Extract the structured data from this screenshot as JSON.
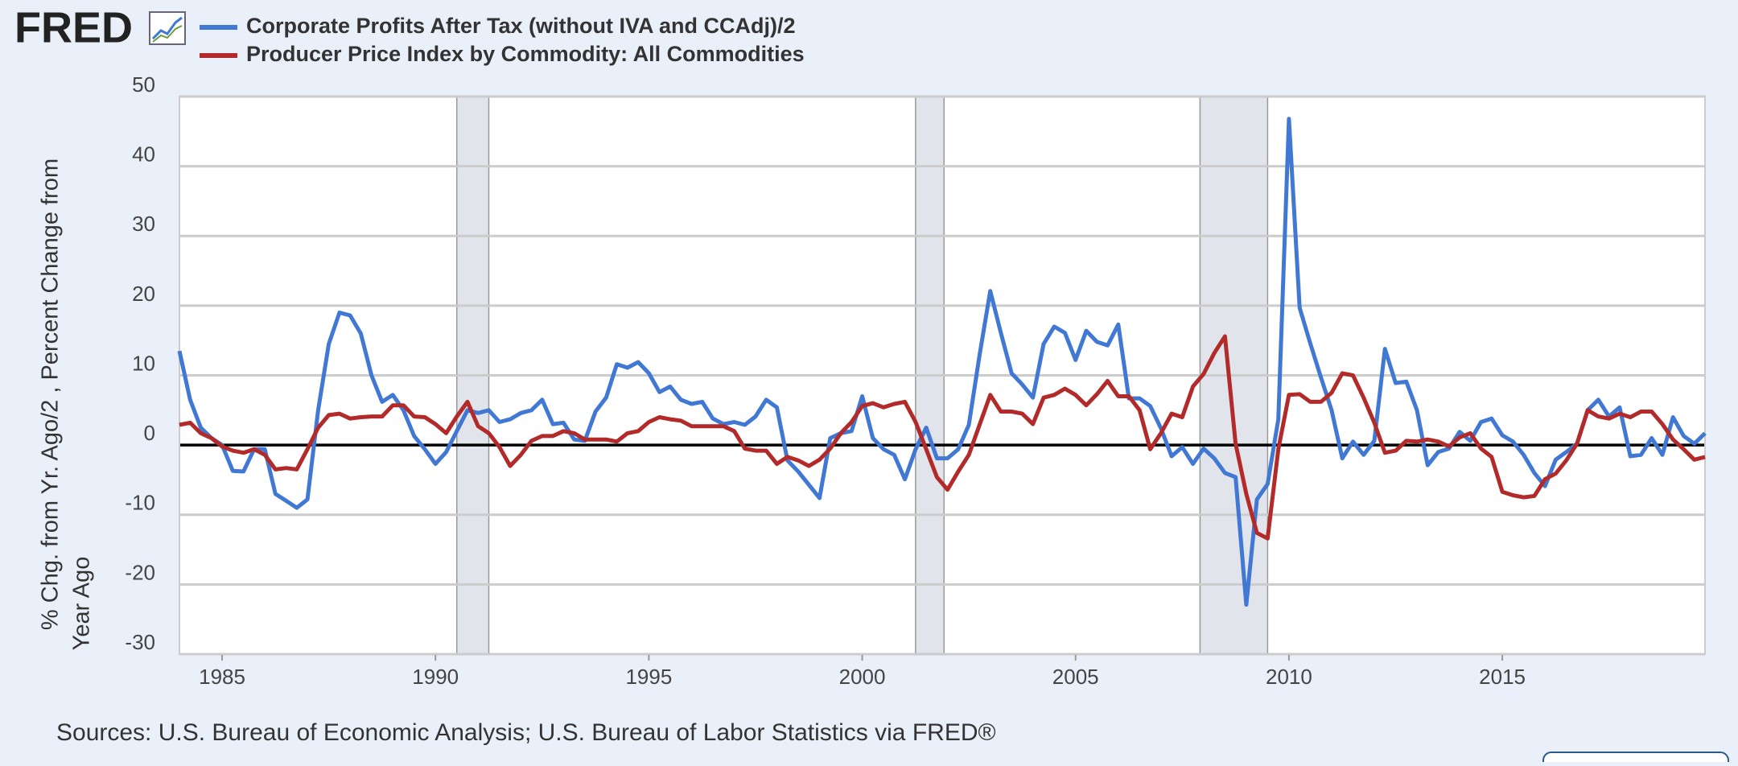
{
  "chart_data": {
    "type": "line",
    "brand": "FRED",
    "y_label": [
      "% Chg. from Yr. Ago/2 , Percent Change from",
      "Year Ago"
    ],
    "source": "Sources: U.S. Bureau of Economic Analysis; U.S. Bureau of Labor Statistics via FRED®",
    "x": [
      1984,
      1984.25,
      1984.5,
      1984.75,
      1985,
      1985.25,
      1985.5,
      1985.75,
      1986,
      1986.25,
      1986.5,
      1986.75,
      1987,
      1987.25,
      1987.5,
      1987.75,
      1988,
      1988.25,
      1988.5,
      1988.75,
      1989,
      1989.25,
      1989.5,
      1989.75,
      1990,
      1990.25,
      1990.5,
      1990.75,
      1991,
      1991.25,
      1991.5,
      1991.75,
      1992,
      1992.25,
      1992.5,
      1992.75,
      1993,
      1993.25,
      1993.5,
      1993.75,
      1994,
      1994.25,
      1994.5,
      1994.75,
      1995,
      1995.25,
      1995.5,
      1995.75,
      1996,
      1996.25,
      1996.5,
      1996.75,
      1997,
      1997.25,
      1997.5,
      1997.75,
      1998,
      1998.25,
      1998.5,
      1998.75,
      1999,
      1999.25,
      1999.5,
      1999.75,
      2000,
      2000.25,
      2000.5,
      2000.75,
      2001,
      2001.25,
      2001.5,
      2001.75,
      2002,
      2002.25,
      2002.5,
      2002.75,
      2003,
      2003.25,
      2003.5,
      2003.75,
      2004,
      2004.25,
      2004.5,
      2004.75,
      2005,
      2005.25,
      2005.5,
      2005.75,
      2006,
      2006.25,
      2006.5,
      2006.75,
      2007,
      2007.25,
      2007.5,
      2007.75,
      2008,
      2008.25,
      2008.5,
      2008.75,
      2009,
      2009.25,
      2009.5,
      2009.75,
      2010,
      2010.25,
      2010.5,
      2010.75,
      2011,
      2011.25,
      2011.5,
      2011.75,
      2012,
      2012.25,
      2012.5,
      2012.75,
      2013,
      2013.25,
      2013.5,
      2013.75,
      2014,
      2014.25,
      2014.5,
      2014.75,
      2015,
      2015.25,
      2015.5,
      2015.75,
      2016,
      2016.25,
      2016.5,
      2016.75,
      2017,
      2017.25,
      2017.5,
      2017.75,
      2018,
      2018.25,
      2018.5,
      2018.75,
      2019,
      2019.25,
      2019.5,
      2019.75
    ],
    "series": [
      {
        "name": "Corporate Profits After Tax (without IVA and CCAdj)/2",
        "color": "#4078d4",
        "values": [
          13.5,
          6.5,
          2.5,
          1,
          0,
          -3.7,
          -3.8,
          -0.6,
          -0.6,
          -7,
          -8,
          -9,
          -7.8,
          5,
          14.5,
          19,
          18.6,
          16,
          10,
          6.2,
          7.2,
          5,
          1.3,
          -0.6,
          -2.7,
          -1,
          2,
          5,
          4.6,
          5,
          3.3,
          3.7,
          4.6,
          5,
          6.5,
          3,
          3.2,
          0.8,
          0.6,
          4.8,
          6.8,
          11.6,
          11.1,
          11.9,
          10.3,
          7.6,
          8.4,
          6.5,
          5.9,
          6.2,
          3.8,
          3,
          3.3,
          2.9,
          4.1,
          6.5,
          5.4,
          -2.2,
          -3.8,
          -5.7,
          -7.6,
          1,
          1.7,
          2,
          7,
          1,
          -0.6,
          -1.4,
          -4.9,
          -0.6,
          2.5,
          -1.9,
          -1.9,
          -0.6,
          2.9,
          12.9,
          22.1,
          16.1,
          10.3,
          8.7,
          6.8,
          14.5,
          17,
          16.1,
          12.2,
          16.4,
          14.8,
          14.3,
          17.3,
          6.7,
          6.7,
          5.6,
          2.4,
          -1.6,
          -0.3,
          -2.7,
          -0.5,
          -1.9,
          -4,
          -4.6,
          -22.9,
          -7.8,
          -5.6,
          3.7,
          46.8,
          19.7,
          14.6,
          9.7,
          5,
          -1.9,
          0.5,
          -1.4,
          0.6,
          13.8,
          8.9,
          9.1,
          5,
          -2.9,
          -1,
          -0.5,
          1.9,
          0.6,
          3.3,
          3.8,
          1.4,
          0.5,
          -1.4,
          -4,
          -5.9,
          -2.1,
          -1,
          0.2,
          5,
          6.5,
          4.1,
          5.4,
          -1.6,
          -1.4,
          1,
          -1.4,
          4,
          1.3,
          0.2,
          1.7
        ]
      },
      {
        "name": "Producer Price Index by Commodity: All Commodities",
        "color": "#b22a2a",
        "values": [
          2.9,
          3.2,
          1.7,
          1,
          -0.2,
          -0.8,
          -1.1,
          -0.6,
          -1.4,
          -3.5,
          -3.3,
          -3.5,
          -0.6,
          2.5,
          4.3,
          4.5,
          3.8,
          4,
          4.1,
          4.1,
          5.7,
          5.7,
          4.1,
          4,
          3,
          1.7,
          4.1,
          6.2,
          2.7,
          1.7,
          -0.3,
          -3,
          -1.4,
          0.6,
          1.3,
          1.3,
          2,
          1.7,
          0.8,
          0.8,
          0.8,
          0.5,
          1.7,
          2,
          3.3,
          4,
          3.7,
          3.5,
          2.7,
          2.7,
          2.7,
          2.7,
          2,
          -0.5,
          -0.8,
          -0.8,
          -2.7,
          -1.7,
          -2.2,
          -3,
          -2.1,
          -0.5,
          1.7,
          3.3,
          5.6,
          6,
          5.4,
          5.9,
          6.2,
          3.3,
          -0.6,
          -4.6,
          -6.4,
          -3.8,
          -1.4,
          2.9,
          7.2,
          4.8,
          4.8,
          4.5,
          3,
          6.8,
          7.2,
          8.1,
          7.2,
          5.7,
          7.3,
          9.2,
          7,
          7,
          5,
          -0.6,
          1.7,
          4.5,
          4,
          8.4,
          10.2,
          13.2,
          15.6,
          0.2,
          -7,
          -12.6,
          -13.4,
          -0.6,
          7.2,
          7.3,
          6.2,
          6.2,
          7.5,
          10.3,
          10,
          6.8,
          3.2,
          -1.1,
          -0.8,
          0.6,
          0.5,
          0.8,
          0.5,
          -0.2,
          1.1,
          1.7,
          -0.5,
          -1.7,
          -6.7,
          -7.2,
          -7.5,
          -7.3,
          -4.9,
          -4.1,
          -2.2,
          0.2,
          5,
          4.1,
          3.8,
          4.5,
          4,
          4.8,
          4.8,
          3,
          0.8,
          -0.6,
          -2.1,
          -1.7
        ]
      }
    ],
    "recessions": [
      [
        1990.5,
        1991.25
      ],
      [
        2001.25,
        2001.917
      ],
      [
        2007.917,
        2009.5
      ]
    ],
    "xlim": [
      1984,
      2019.75
    ],
    "xticks": [
      1985,
      1990,
      1995,
      2000,
      2005,
      2010,
      2015
    ],
    "ylim": [
      -30,
      50
    ],
    "yticks": [
      -30,
      -20,
      -10,
      0,
      10,
      20,
      30,
      40,
      50
    ],
    "grid": true,
    "zero_line": true
  }
}
